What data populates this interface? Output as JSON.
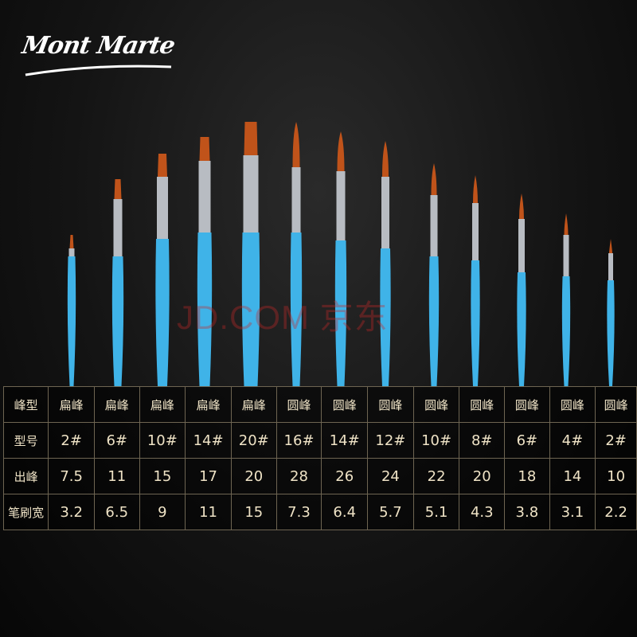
{
  "brand": {
    "logo_text": "Mont Marte"
  },
  "watermark": "JD.COM 京东",
  "colors": {
    "handle": "#3fb3e8",
    "bristle": "#c0531a",
    "ferrule": "#b8bcc2",
    "table_text": "#efe3c6",
    "table_border": "#6e6552"
  },
  "table": {
    "rows": [
      {
        "label": "峰型",
        "values": [
          "扁峰",
          "扁峰",
          "扁峰",
          "扁峰",
          "扁峰",
          "圆峰",
          "圆峰",
          "圆峰",
          "圆峰",
          "圆峰",
          "圆峰",
          "圆峰",
          "圆峰"
        ]
      },
      {
        "label": "型号",
        "values": [
          "2#",
          "6#",
          "10#",
          "14#",
          "20#",
          "16#",
          "14#",
          "12#",
          "10#",
          "8#",
          "6#",
          "4#",
          "2#"
        ]
      },
      {
        "label": "出峰",
        "values": [
          "7.5",
          "11",
          "15",
          "17",
          "20",
          "28",
          "26",
          "24",
          "22",
          "20",
          "18",
          "14",
          "10"
        ]
      },
      {
        "label": "笔刷宽",
        "values": [
          "3.2",
          "6.5",
          "9",
          "11",
          "15",
          "7.3",
          "6.4",
          "5.7",
          "5.1",
          "4.3",
          "3.8",
          "3.1",
          "2.2"
        ]
      }
    ]
  }
}
